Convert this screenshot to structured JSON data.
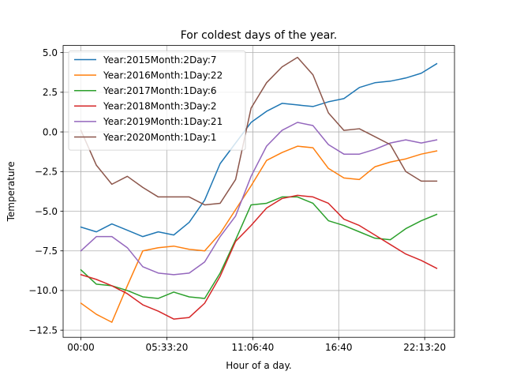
{
  "chart_data": {
    "type": "line",
    "title": "For coldest days of the year.",
    "xlabel": "Hour of a day.",
    "ylabel": "Temperature",
    "x_hours": [
      0,
      1,
      2,
      3,
      4,
      5,
      6,
      7,
      8,
      9,
      10,
      11,
      12,
      13,
      14,
      15,
      16,
      17,
      18,
      19,
      20,
      21,
      22,
      23
    ],
    "xlim": [
      -1.15,
      24.15
    ],
    "ylim": [
      -12.95,
      5.45
    ],
    "x_ticks": [
      {
        "value": 0,
        "label": "00:00"
      },
      {
        "value": 5.5556,
        "label": "05:33:20"
      },
      {
        "value": 11.1111,
        "label": "11:06:40"
      },
      {
        "value": 16.6667,
        "label": "16:40"
      },
      {
        "value": 22.2222,
        "label": "22:13:20"
      }
    ],
    "y_ticks": [
      {
        "value": 5.0,
        "label": "5.0"
      },
      {
        "value": 2.5,
        "label": "2.5"
      },
      {
        "value": 0.0,
        "label": "0.0"
      },
      {
        "value": -2.5,
        "label": "−2.5"
      },
      {
        "value": -5.0,
        "label": "−5.0"
      },
      {
        "value": -7.5,
        "label": "−7.5"
      },
      {
        "value": -10.0,
        "label": "−10.0"
      },
      {
        "value": -12.5,
        "label": "−12.5"
      }
    ],
    "grid": true,
    "legend_position": "top-left",
    "series": [
      {
        "name": "Year:2015Month:2Day:7",
        "color": "#1f77b4",
        "values": [
          -6.0,
          -6.3,
          -5.8,
          -6.2,
          -6.6,
          -6.3,
          -6.5,
          -5.7,
          -4.3,
          -2.0,
          -0.7,
          0.6,
          1.3,
          1.8,
          1.7,
          1.6,
          1.9,
          2.1,
          2.8,
          3.1,
          3.2,
          3.4,
          3.7,
          4.3
        ]
      },
      {
        "name": "Year:2016Month:1Day:22",
        "color": "#ff7f0e",
        "values": [
          -10.8,
          -11.5,
          -12.0,
          -9.7,
          -7.5,
          -7.3,
          -7.2,
          -7.4,
          -7.5,
          -6.4,
          -4.9,
          -3.4,
          -1.8,
          -1.3,
          -0.9,
          -1.0,
          -2.3,
          -2.9,
          -3.0,
          -2.2,
          -1.9,
          -1.7,
          -1.4,
          -1.2
        ]
      },
      {
        "name": "Year:2017Month:1Day:6",
        "color": "#2ca02c",
        "values": [
          -8.7,
          -9.6,
          -9.7,
          -10.0,
          -10.4,
          -10.5,
          -10.1,
          -10.4,
          -10.5,
          -8.9,
          -6.8,
          -4.6,
          -4.5,
          -4.1,
          -4.1,
          -4.5,
          -5.6,
          -5.9,
          -6.3,
          -6.7,
          -6.8,
          -6.1,
          -5.6,
          -5.2
        ]
      },
      {
        "name": "Year:2018Month:3Day:2",
        "color": "#d62728",
        "values": [
          -9.0,
          -9.3,
          -9.7,
          -10.2,
          -10.9,
          -11.3,
          -11.8,
          -11.7,
          -10.8,
          -9.1,
          -6.9,
          -5.9,
          -4.8,
          -4.2,
          -4.0,
          -4.1,
          -4.5,
          -5.5,
          -5.9,
          -6.5,
          -7.1,
          -7.7,
          -8.1,
          -8.6
        ]
      },
      {
        "name": "Year:2019Month:1Day:21",
        "color": "#9467bd",
        "values": [
          -7.5,
          -6.6,
          -6.6,
          -7.3,
          -8.5,
          -8.9,
          -9.0,
          -8.9,
          -8.2,
          -6.6,
          -5.3,
          -2.8,
          -0.9,
          0.1,
          0.6,
          0.4,
          -0.8,
          -1.4,
          -1.4,
          -1.1,
          -0.7,
          -0.5,
          -0.7,
          -0.5
        ]
      },
      {
        "name": "Year:2020Month:1Day:1",
        "color": "#8c564b",
        "values": [
          0.1,
          -2.1,
          -3.3,
          -2.8,
          -3.5,
          -4.1,
          -4.1,
          -4.1,
          -4.6,
          -4.5,
          -3.0,
          1.5,
          3.1,
          4.1,
          4.7,
          3.6,
          1.2,
          0.1,
          0.2,
          -0.3,
          -0.8,
          -2.5,
          -3.1,
          -3.1
        ]
      }
    ]
  }
}
